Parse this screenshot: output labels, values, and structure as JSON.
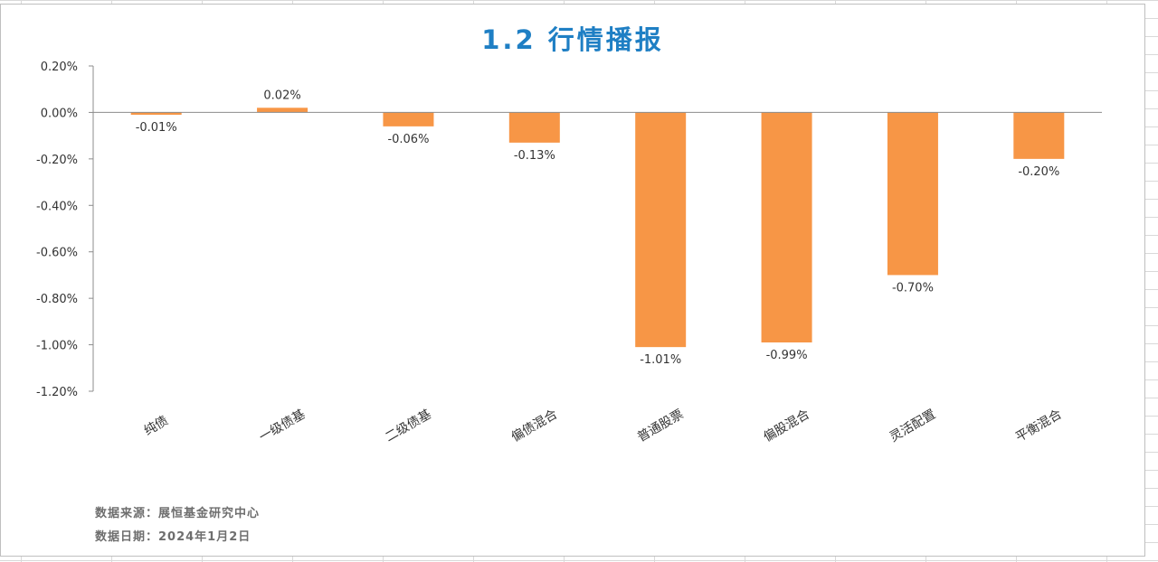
{
  "colors": {
    "bar": "#f79646",
    "title": "#1f7fc4"
  },
  "chart_data": {
    "type": "bar",
    "title": "1.2 行情播报",
    "categories": [
      "纯债",
      "一级债基",
      "二级债基",
      "偏债混合",
      "普通股票",
      "偏股混合",
      "灵活配置",
      "平衡混合"
    ],
    "values": [
      -0.01,
      0.02,
      -0.06,
      -0.13,
      -1.01,
      -0.99,
      -0.7,
      -0.2
    ],
    "data_labels": [
      "-0.01%",
      "0.02%",
      "-0.06%",
      "-0.13%",
      "-1.01%",
      "-0.99%",
      "-0.70%",
      "-0.20%"
    ],
    "y_ticks": [
      0.2,
      0.0,
      -0.2,
      -0.4,
      -0.6,
      -0.8,
      -1.0,
      -1.2
    ],
    "y_tick_labels": [
      "0.20%",
      "0.00%",
      "-0.20%",
      "-0.40%",
      "-0.60%",
      "-0.80%",
      "-1.00%",
      "-1.20%"
    ],
    "ylim": [
      -1.2,
      0.2
    ],
    "grid": false,
    "legend": "none"
  },
  "footer": {
    "source": "数据来源：展恒基金研究中心",
    "date": "数据日期：2024年1月2日"
  }
}
